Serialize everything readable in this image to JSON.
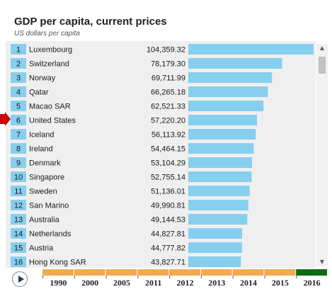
{
  "header": {
    "title": "GDP per capita, current prices",
    "subtitle": "US dollars per capita"
  },
  "colors": {
    "bar": "#87cfee",
    "rank_badge": "#87cfee",
    "panel_bg": "#efefef",
    "timeline_segment": "#f4a94e",
    "timeline_active": "#0e6b12",
    "pointer": "#cc0000"
  },
  "icons": {
    "pointer": "red-arrow-right-icon",
    "play": "play-icon",
    "scroll_up": "triangle-up-icon",
    "scroll_down": "triangle-down-icon"
  },
  "chart_data": {
    "type": "bar",
    "orientation": "horizontal",
    "title": "GDP per capita, current prices",
    "subtitle": "US dollars per capita",
    "highlighted": "United States",
    "rows": [
      {
        "rank": "1",
        "name": "Luxembourg",
        "value": 104359.32,
        "label": "104,359.32"
      },
      {
        "rank": "2",
        "name": "Switzerland",
        "value": 78179.3,
        "label": "78,179.30"
      },
      {
        "rank": "3",
        "name": "Norway",
        "value": 69711.99,
        "label": "69,711.99"
      },
      {
        "rank": "4",
        "name": "Qatar",
        "value": 66265.18,
        "label": "66,265.18"
      },
      {
        "rank": "5",
        "name": "Macao SAR",
        "value": 62521.33,
        "label": "62,521.33"
      },
      {
        "rank": "6",
        "name": "United States",
        "value": 57220.2,
        "label": "57,220.20"
      },
      {
        "rank": "7",
        "name": "Iceland",
        "value": 56113.92,
        "label": "56,113.92"
      },
      {
        "rank": "8",
        "name": "Ireland",
        "value": 54464.15,
        "label": "54,464.15"
      },
      {
        "rank": "9",
        "name": "Denmark",
        "value": 53104.29,
        "label": "53,104.29"
      },
      {
        "rank": "10",
        "name": "Singapore",
        "value": 52755.14,
        "label": "52,755.14"
      },
      {
        "rank": "11",
        "name": "Sweden",
        "value": 51136.01,
        "label": "51,136.01"
      },
      {
        "rank": "12",
        "name": "San Marino",
        "value": 49990.81,
        "label": "49,990.81"
      },
      {
        "rank": "13",
        "name": "Australia",
        "value": 49144.53,
        "label": "49,144.53"
      },
      {
        "rank": "14",
        "name": "Netherlands",
        "value": 44827.81,
        "label": "44,827.81"
      },
      {
        "rank": "15",
        "name": "Austria",
        "value": 44777.82,
        "label": "44,777.82"
      },
      {
        "rank": "16",
        "name": "Hong Kong SAR",
        "value": 43827.71,
        "label": "43,827.71"
      }
    ]
  },
  "timeline": {
    "years": [
      "1990",
      "2000",
      "2005",
      "2011",
      "2012",
      "2013",
      "2014",
      "2015",
      "2016"
    ],
    "selected": "2016"
  }
}
